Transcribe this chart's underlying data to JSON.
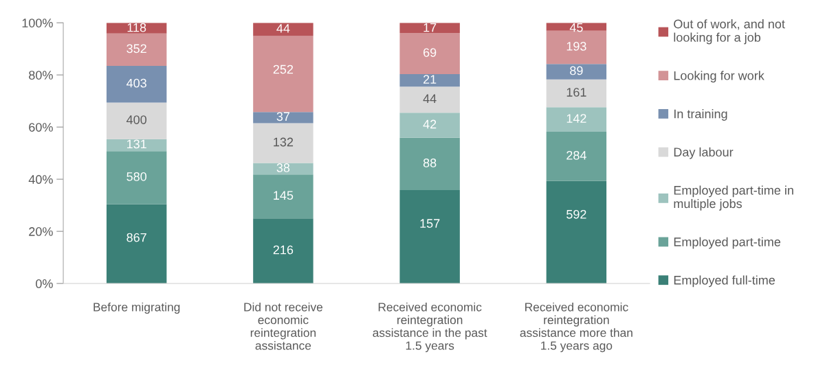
{
  "chart_data": {
    "type": "bar",
    "stacked": true,
    "categories": [
      "Before migrating",
      "Did not receive\neconomic\nreintegration\nassistance",
      "Received economic\nreintegration\nassistance in the past\n1.5 years",
      "Received economic\nreintegration\nassistance more than\n1.5 years ago"
    ],
    "series": [
      {
        "name": "Employed full-time",
        "color": "#3b8077",
        "values": [
          30.4,
          25.0,
          35.8,
          39.3
        ]
      },
      {
        "name": "Employed part-time",
        "color": "#6aa399",
        "values": [
          20.4,
          16.8,
          20.1,
          18.9
        ]
      },
      {
        "name": "Employed part-time in\nmultiple jobs",
        "color": "#9dc3be",
        "values": [
          4.6,
          4.4,
          9.6,
          9.4
        ]
      },
      {
        "name": "Day labour",
        "color": "#d9d9d9",
        "values": [
          14.0,
          15.3,
          10.0,
          10.7
        ]
      },
      {
        "name": "In training",
        "color": "#7890b0",
        "values": [
          14.1,
          4.3,
          4.8,
          5.9
        ]
      },
      {
        "name": "Looking for work",
        "color": "#d29396",
        "values": [
          12.4,
          29.1,
          15.8,
          12.8
        ]
      },
      {
        "name": "Out of work, and not\nlooking for a job",
        "color": "#b85458",
        "values": [
          4.1,
          5.1,
          3.9,
          3.0
        ]
      }
    ],
    "annotations": [
      {
        "text": "867",
        "x": "Before migrating",
        "y": 30.4
      },
      {
        "text": "580",
        "x": "Before migrating",
        "y": 50.8
      },
      {
        "text": "131",
        "x": "Before migrating",
        "y": 55.4
      },
      {
        "text": "400",
        "x": "Before migrating",
        "y": 69.4
      },
      {
        "text": "403",
        "x": "Before migrating",
        "y": 83.5
      },
      {
        "text": "352",
        "x": "Before migrating",
        "y": 95.9
      },
      {
        "text": "118",
        "x": "Before migrating",
        "y": 100.0
      },
      {
        "text": "216",
        "x": "Did not receive\neconomic\nreintegration\nassistance",
        "y": 25.0
      },
      {
        "text": "145",
        "x": "Did not receive\neconomic\nreintegration\nassistance",
        "y": 41.8
      },
      {
        "text": "38",
        "x": "Did not receive\neconomic\nreintegration\nassistance",
        "y": 46.2
      },
      {
        "text": "132",
        "x": "Did not receive\neconomic\nreintegration\nassistance",
        "y": 61.5
      },
      {
        "text": "37",
        "x": "Did not receive\neconomic\nreintegration\nassistance",
        "y": 65.8
      },
      {
        "text": "252",
        "x": "Did not receive\neconomic\nreintegration\nassistance",
        "y": 94.9
      },
      {
        "text": "44",
        "x": "Did not receive\neconomic\nreintegration\nassistance",
        "y": 100.0
      },
      {
        "text": "157",
        "x": "Received economic\nreintegration\nassistance in the past\n1.5 years",
        "y": 35.8
      },
      {
        "text": "88",
        "x": "Received economic\nreintegration\nassistance in the past\n1.5 years",
        "y": 55.9
      },
      {
        "text": "42",
        "x": "Received economic\nreintegration\nassistance in the past\n1.5 years",
        "y": 65.5
      },
      {
        "text": "44",
        "x": "Received economic\nreintegration\nassistance in the past\n1.5 years",
        "y": 75.5
      },
      {
        "text": "21",
        "x": "Received economic\nreintegration\nassistance in the past\n1.5 years",
        "y": 80.3
      },
      {
        "text": "69",
        "x": "Received economic\nreintegration\nassistance in the past\n1.5 years",
        "y": 96.1
      },
      {
        "text": "17",
        "x": "Received economic\nreintegration\nassistance in the past\n1.5 years",
        "y": 100.0
      },
      {
        "text": "592",
        "x": "Received economic\nreintegration\nassistance more than\n1.5 years ago",
        "y": 39.3
      },
      {
        "text": "284",
        "x": "Received economic\nreintegration\nassistance more than\n1.5 years ago",
        "y": 58.2
      },
      {
        "text": "142",
        "x": "Received economic\nreintegration\nassistance more than\n1.5 years ago",
        "y": 67.6
      },
      {
        "text": "161",
        "x": "Received economic\nreintegration\nassistance more than\n1.5 years ago",
        "y": 78.3
      },
      {
        "text": "89",
        "x": "Received economic\nreintegration\nassistance more than\n1.5 years ago",
        "y": 84.2
      },
      {
        "text": "193",
        "x": "Received economic\nreintegration\nassistance more than\n1.5 years ago",
        "y": 97.0
      },
      {
        "text": "45",
        "x": "Received economic\nreintegration\nassistance more than\n1.5 years ago",
        "y": 100.0
      }
    ],
    "ylim": [
      0,
      100
    ],
    "yticks": [
      {
        "value": 0,
        "label": "0%"
      },
      {
        "value": 20,
        "label": "20%"
      },
      {
        "value": 40,
        "label": "40%"
      },
      {
        "value": 60,
        "label": "60%"
      },
      {
        "value": 80,
        "label": "80%"
      },
      {
        "value": 100,
        "label": "100%"
      }
    ],
    "legend": "right",
    "grid": false
  }
}
